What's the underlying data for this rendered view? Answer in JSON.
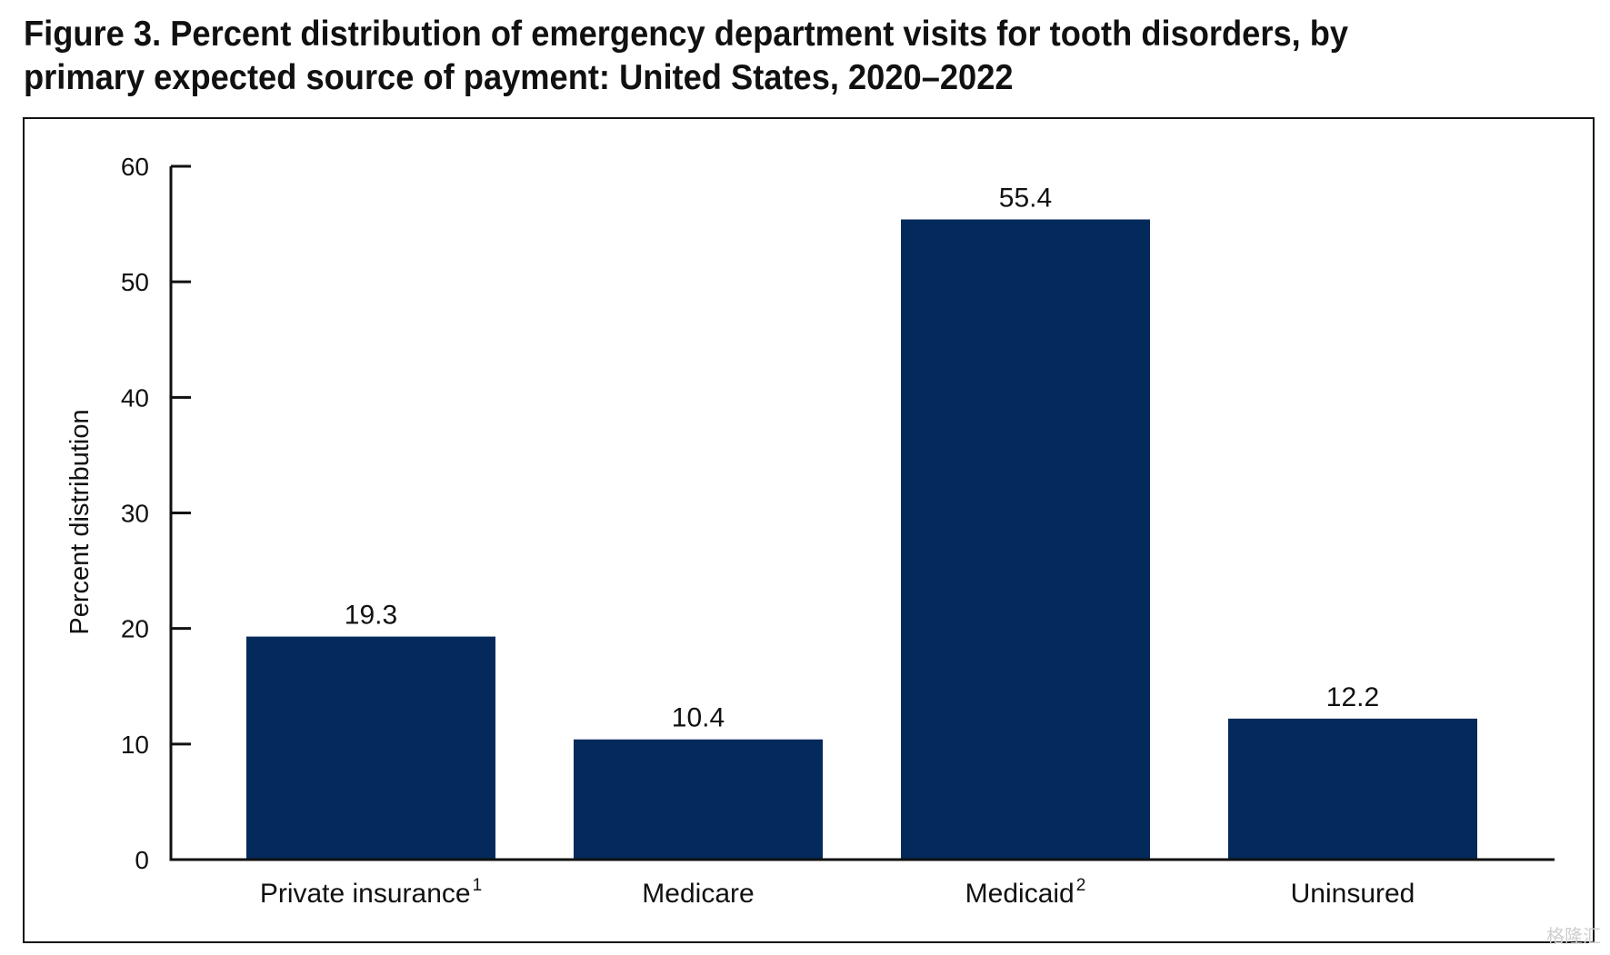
{
  "figure": {
    "title": "Figure 3. Percent distribution of emergency department visits for tooth disorders, by primary expected source of payment: United States, 2020–2022"
  },
  "chart_data": {
    "type": "bar",
    "title": "Figure 3. Percent distribution of emergency department visits for tooth disorders, by primary expected source of payment: United States, 2020–2022",
    "xlabel": "",
    "ylabel": "Percent distribution",
    "ylim": [
      0,
      60
    ],
    "yticks": [
      0,
      10,
      20,
      30,
      40,
      50,
      60
    ],
    "categories": [
      {
        "label": "Private insurance",
        "footnote": "1"
      },
      {
        "label": "Medicare",
        "footnote": ""
      },
      {
        "label": "Medicaid",
        "footnote": "2"
      },
      {
        "label": "Uninsured",
        "footnote": ""
      }
    ],
    "values": [
      19.3,
      10.4,
      55.4,
      12.2
    ],
    "value_labels": [
      "19.3",
      "10.4",
      "55.4",
      "12.2"
    ],
    "bar_color": "#032a5a",
    "grid": false,
    "legend": "none"
  },
  "watermark": {
    "text": "格隆汇"
  },
  "colors": {
    "bar": "#032a5a",
    "axis": "#111111",
    "text": "#111111"
  }
}
